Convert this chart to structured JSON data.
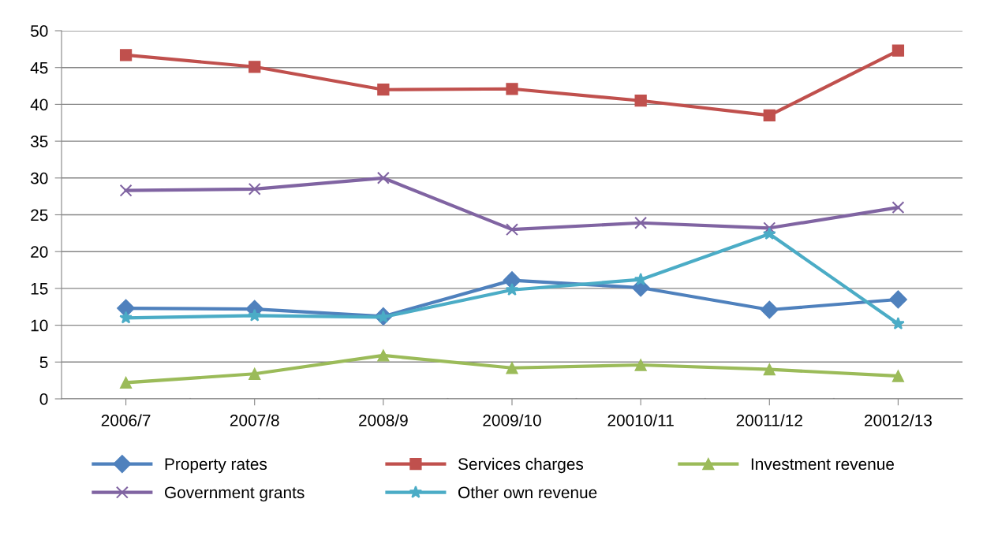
{
  "chart_data": {
    "type": "line",
    "categories": [
      "2006/7",
      "2007/8",
      "2008/9",
      "2009/10",
      "20010/11",
      "20011/12",
      "20012/13"
    ],
    "series": [
      {
        "name": "Property rates",
        "color": "#4f81bd",
        "marker": "diamond",
        "values": [
          12.3,
          12.2,
          11.2,
          16.1,
          15.1,
          12.1,
          13.5
        ]
      },
      {
        "name": "Services charges",
        "color": "#c0504d",
        "marker": "square",
        "values": [
          46.7,
          45.1,
          42.0,
          42.1,
          40.5,
          38.5,
          47.3
        ]
      },
      {
        "name": "Investment revenue",
        "color": "#9bbb59",
        "marker": "triangle",
        "values": [
          2.2,
          3.4,
          5.9,
          4.2,
          4.6,
          4.0,
          3.1
        ]
      },
      {
        "name": "Government grants",
        "color": "#8064a2",
        "marker": "cross",
        "values": [
          28.3,
          28.5,
          30.0,
          23.0,
          23.9,
          23.2,
          26.0
        ]
      },
      {
        "name": "Other own revenue",
        "color": "#4bacc6",
        "marker": "star",
        "values": [
          11.0,
          11.3,
          11.1,
          14.8,
          16.2,
          22.4,
          10.2
        ]
      }
    ],
    "ylim": [
      0,
      50
    ],
    "yticks": [
      0,
      5,
      10,
      15,
      20,
      25,
      30,
      35,
      40,
      45,
      50
    ],
    "grid": "y",
    "legend": "bottom",
    "line_style": "solid"
  }
}
